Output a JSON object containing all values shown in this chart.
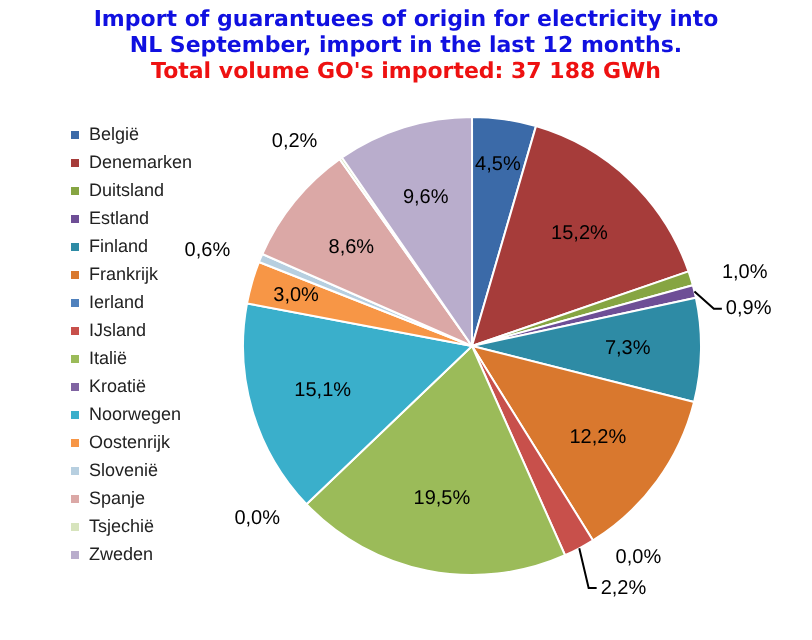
{
  "chart_data": {
    "type": "pie",
    "title": "Import of guarantuees of origin for electricity into NL September, import in the last 12 months.",
    "subtitle": "Total volume GO's imported: 37 188 GWh",
    "categories": [
      "België",
      "Denemarken",
      "Duitsland",
      "Estland",
      "Finland",
      "Frankrijk",
      "Ierland",
      "IJsland",
      "Italië",
      "Kroatië",
      "Noorwegen",
      "Oostenrijk",
      "Slovenië",
      "Spanje",
      "Tsjechië",
      "Zweden"
    ],
    "values": [
      4.5,
      15.2,
      1.0,
      0.9,
      7.3,
      12.2,
      0.0,
      2.2,
      19.5,
      0.0,
      15.1,
      3.0,
      0.6,
      8.6,
      0.2,
      9.6
    ],
    "value_labels": [
      "4,5%",
      "15,2%",
      "1,0%",
      "0,9%",
      "7,3%",
      "12,2%",
      "0,0%",
      "2,2%",
      "19,5%",
      "0,0%",
      "15,1%",
      "3,0%",
      "0,6%",
      "8,6%",
      "0,2%",
      "9,6%"
    ],
    "colors": [
      "#3b6aa8",
      "#a63c3a",
      "#86a542",
      "#6e4e96",
      "#2e8ba5",
      "#d9782e",
      "#4f81bd",
      "#c8504b",
      "#9bbb59",
      "#8064a2",
      "#3aafcb",
      "#f79646",
      "#b7cfe0",
      "#dba8a6",
      "#d7e4bd",
      "#b9adcc"
    ],
    "legend": "left"
  }
}
